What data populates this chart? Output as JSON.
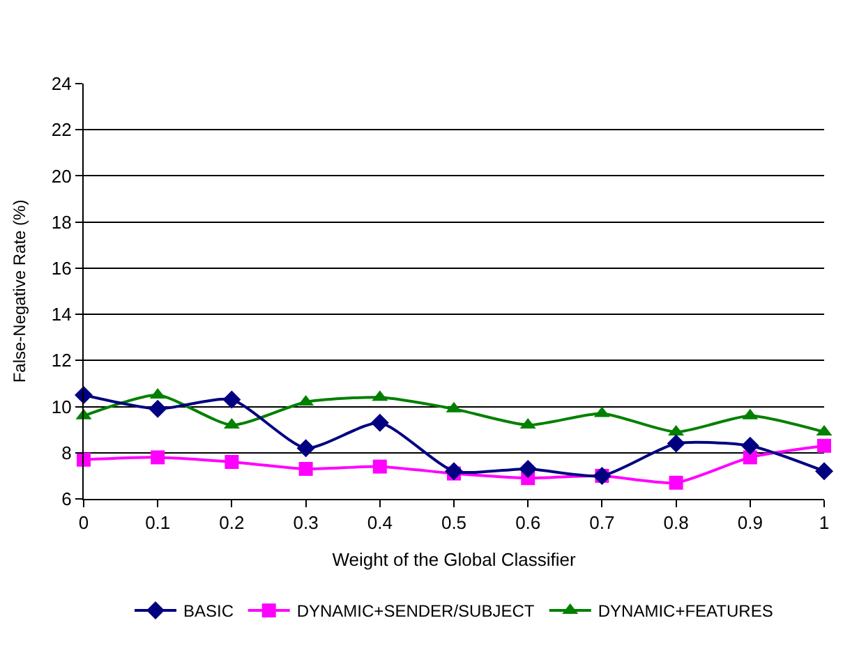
{
  "chart_data": {
    "type": "line",
    "xlabel": "Weight of the Global Classifier",
    "ylabel": "False-Negative Rate (%)",
    "x": [
      0,
      0.1,
      0.2,
      0.3,
      0.4,
      0.5,
      0.6,
      0.7,
      0.8,
      0.9,
      1
    ],
    "series": [
      {
        "name": "BASIC",
        "color": "#000080",
        "marker": "diamond",
        "values": [
          10.5,
          9.9,
          10.3,
          8.2,
          9.3,
          7.2,
          7.3,
          7.0,
          8.4,
          8.3,
          7.2
        ]
      },
      {
        "name": "DYNAMIC+SENDER/SUBJECT",
        "color": "#ff00ff",
        "marker": "square",
        "values": [
          7.7,
          7.8,
          7.6,
          7.3,
          7.4,
          7.1,
          6.9,
          7.0,
          6.7,
          7.8,
          8.3
        ]
      },
      {
        "name": "DYNAMIC+FEATURES",
        "color": "#008000",
        "marker": "triangle",
        "values": [
          9.6,
          10.5,
          9.2,
          10.2,
          10.4,
          9.9,
          9.2,
          9.7,
          8.9,
          9.6,
          8.9
        ]
      }
    ],
    "xlim": [
      0,
      1
    ],
    "xticks": [
      0,
      0.1,
      0.2,
      0.3,
      0.4,
      0.5,
      0.6,
      0.7,
      0.8,
      0.9,
      1
    ],
    "ylim": [
      6,
      24
    ],
    "yticks": [
      6,
      8,
      10,
      12,
      14,
      16,
      18,
      20,
      22,
      24
    ],
    "grid": "y",
    "legend": "bottom",
    "line_style": "solid"
  }
}
